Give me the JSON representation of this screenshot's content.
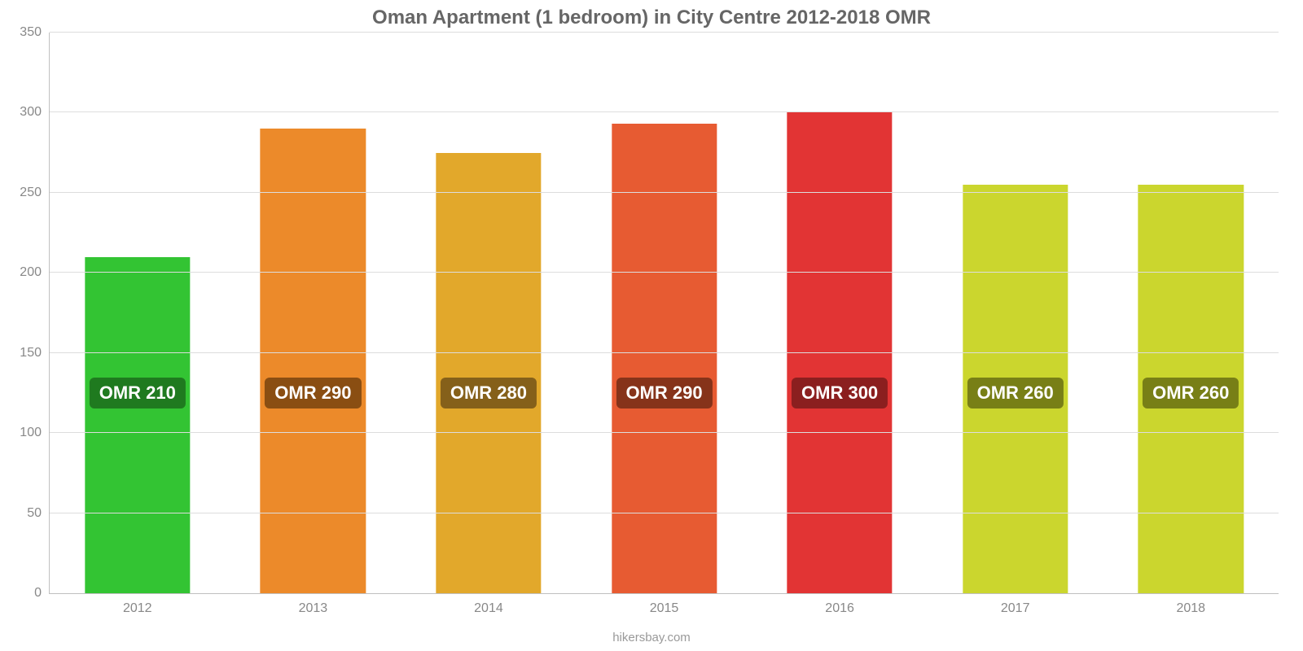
{
  "chart": {
    "type": "bar",
    "title": "Oman Apartment (1 bedroom) in City Centre 2012-2018 OMR",
    "title_fontsize": 24,
    "title_color": "#666666",
    "background_color": "#ffffff",
    "gridline_color": "#dddddd",
    "axis_line_color": "#c0c0c0",
    "tick_label_color": "#888888",
    "tick_fontsize": 16,
    "bar_width_pct": 60,
    "ylim": [
      0,
      350
    ],
    "yticks": [
      0,
      50,
      100,
      150,
      200,
      250,
      300,
      350
    ],
    "data_label_fontsize": 22,
    "data_label_text_color": "#ffffff",
    "data_label_y_value": 125,
    "categories": [
      "2012",
      "2013",
      "2014",
      "2015",
      "2016",
      "2017",
      "2018"
    ],
    "bars": [
      {
        "value": 210,
        "display_value": 210,
        "label": "OMR 210",
        "color": "#33c433",
        "label_bg": "#1f7a1f"
      },
      {
        "value": 290,
        "display_value": 290,
        "label": "OMR 290",
        "color": "#ec8a2a",
        "label_bg": "#8a4e12"
      },
      {
        "value": 280,
        "display_value": 275,
        "label": "OMR 280",
        "color": "#e2a82b",
        "label_bg": "#85601a"
      },
      {
        "value": 290,
        "display_value": 293,
        "label": "OMR 290",
        "color": "#e75b32",
        "label_bg": "#86331a"
      },
      {
        "value": 300,
        "display_value": 300,
        "label": "OMR 300",
        "color": "#e23434",
        "label_bg": "#8b1f1f"
      },
      {
        "value": 260,
        "display_value": 255,
        "label": "OMR 260",
        "color": "#cbd62e",
        "label_bg": "#787f16"
      },
      {
        "value": 260,
        "display_value": 255,
        "label": "OMR 260",
        "color": "#cbd62e",
        "label_bg": "#787f16"
      }
    ]
  },
  "attribution": {
    "text": "hikersbay.com",
    "fontsize": 15,
    "color": "#999999"
  }
}
